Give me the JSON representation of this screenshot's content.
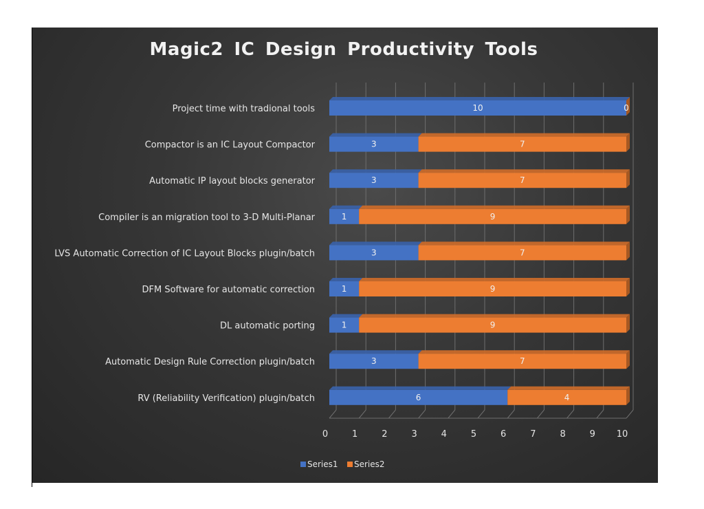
{
  "chart_data": {
    "type": "bar",
    "orientation": "horizontal",
    "stacked": true,
    "title": "Magic2  IC  Design  Productivity  Tools",
    "categories": [
      "Project time with tradional tools",
      "Compactor is an IC Layout Compactor",
      "Automatic IP layout blocks generator",
      "Compiler is an migration tool to 3-D Multi-Planar",
      "LVS Automatic Correction of IC Layout Blocks plugin/batch",
      "DFM Software for automatic correction",
      "DL automatic porting",
      "Automatic Design Rule Correction plugin/batch",
      "RV (Reliability Verification) plugin/batch"
    ],
    "series": [
      {
        "name": "Series1",
        "values": [
          10,
          3,
          3,
          1,
          3,
          1,
          1,
          3,
          6
        ],
        "color": "#4472c4"
      },
      {
        "name": "Series2",
        "values": [
          0,
          7,
          7,
          9,
          7,
          9,
          9,
          7,
          4
        ],
        "color": "#ed7d31"
      }
    ],
    "xlim": [
      0,
      10
    ],
    "xticks": [
      "0",
      "1",
      "2",
      "3",
      "4",
      "5",
      "6",
      "7",
      "8",
      "9",
      "10"
    ],
    "grid": true,
    "legend": "bottom"
  }
}
